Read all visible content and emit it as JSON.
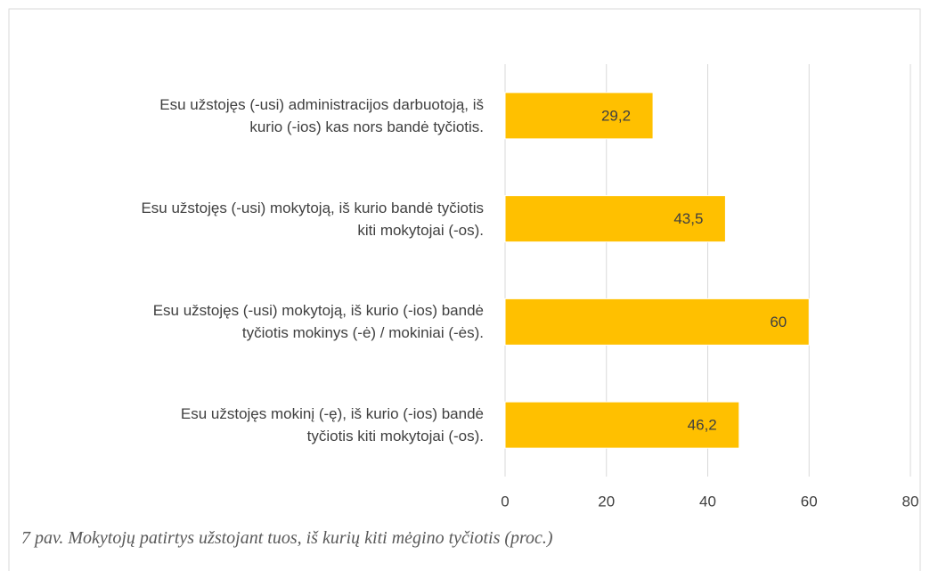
{
  "chart_data": {
    "type": "bar",
    "orientation": "horizontal",
    "categories": [
      "Esu užstojęs (-usi) administracijos darbuotoją, iš\nkurio (-ios) kas nors bandė tyčiotis.",
      "Esu užstojęs (-usi) mokytoją, iš kurio bandė tyčiotis\nkiti mokytojai (-os).",
      "Esu užstojęs (-usi) mokytoją, iš kurio (-ios) bandė\ntyčiotis mokinys (-ė) / mokiniai (-ės).",
      "Esu užstojęs mokinį (-ę), iš kurio (-ios) bandė\ntyčiotis kiti mokytojai (-os)."
    ],
    "values": [
      29.2,
      43.5,
      60,
      46.2
    ],
    "value_labels": [
      "29,2",
      "43,5",
      "60",
      "46,2"
    ],
    "color": "#ffc000",
    "xlim": [
      0,
      80
    ],
    "xticks": [
      0,
      20,
      40,
      60,
      80
    ],
    "grid": true,
    "caption": "7 pav. Mokytojų patirtys užstojant tuos, iš kurių kiti mėgino tyčiotis (proc.)"
  }
}
